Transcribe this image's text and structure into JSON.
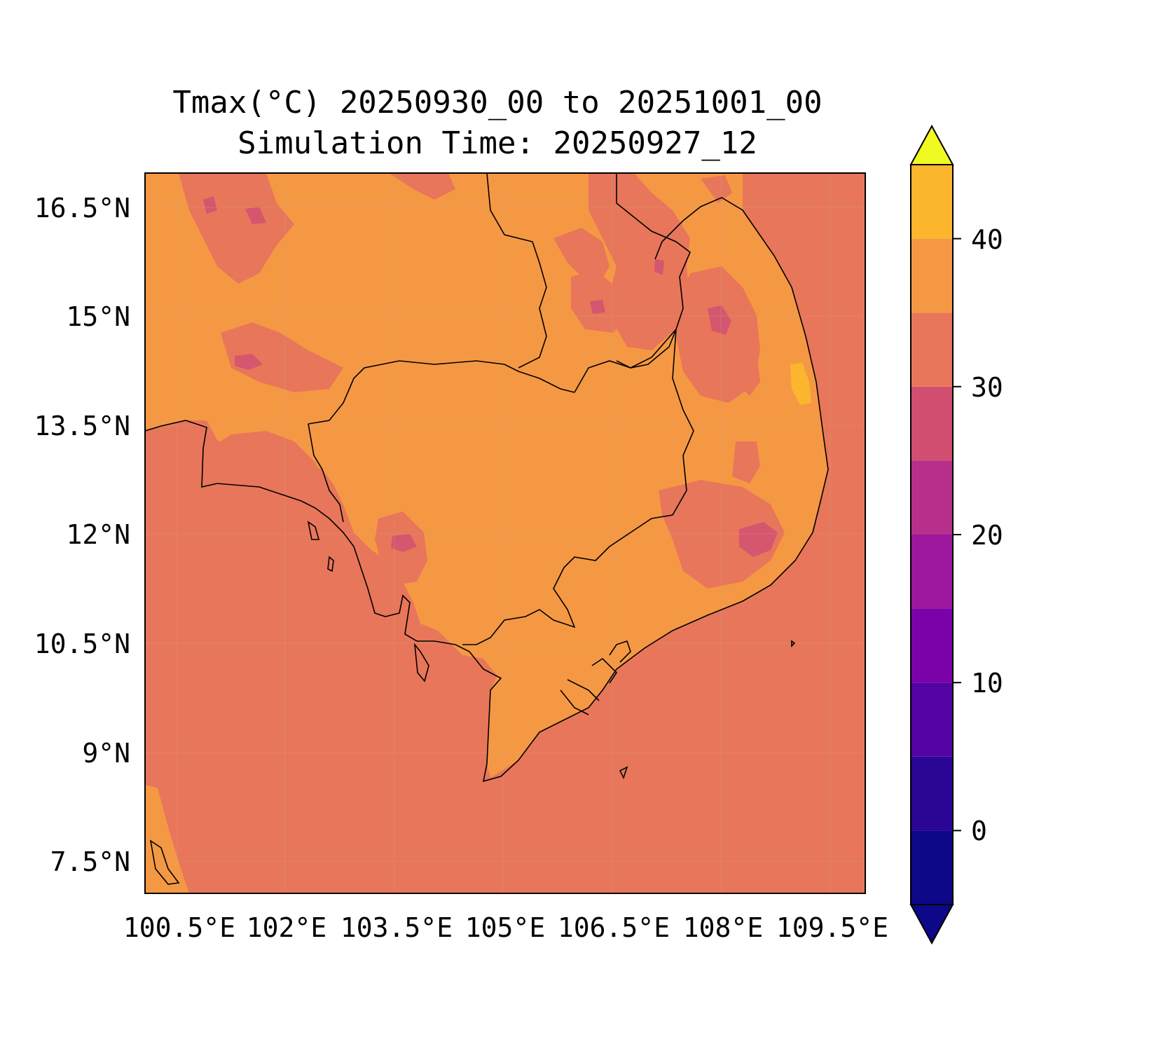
{
  "map": {
    "title_line1": "Tmax(°C) 20250930_00 to 20251001_00",
    "title_line2": "Simulation Time: 20250927_12",
    "lat_labels": [
      "16.5°N",
      "15°N",
      "13.5°N",
      "12°N",
      "10.5°N",
      "9°N",
      "7.5°N"
    ],
    "lon_labels": [
      "100.5°E",
      "102°E",
      "103.5°E",
      "105°E",
      "106.5°E",
      "108°E",
      "109.5°E"
    ],
    "colors": {
      "sea_26_30": "#e8765a",
      "land_30_35": "#f59844",
      "cool_22_25": "#d4566f",
      "hot_35_40": "#fcb62e",
      "border": "#000000"
    }
  },
  "colorbar": {
    "ticks": [
      "0",
      "10",
      "20",
      "30",
      "40"
    ],
    "levels": [
      -5,
      0,
      5,
      10,
      15,
      20,
      25,
      30,
      35,
      40,
      45
    ],
    "colors": [
      "#0d0887",
      "#2b0594",
      "#5402a3",
      "#7a02a8",
      "#9c179e",
      "#b6308b",
      "#d24e71",
      "#e8765a",
      "#f59844",
      "#fcb62e",
      "#f2e224"
    ],
    "extend_low": "#0d0887",
    "extend_high": "#f0f921"
  }
}
